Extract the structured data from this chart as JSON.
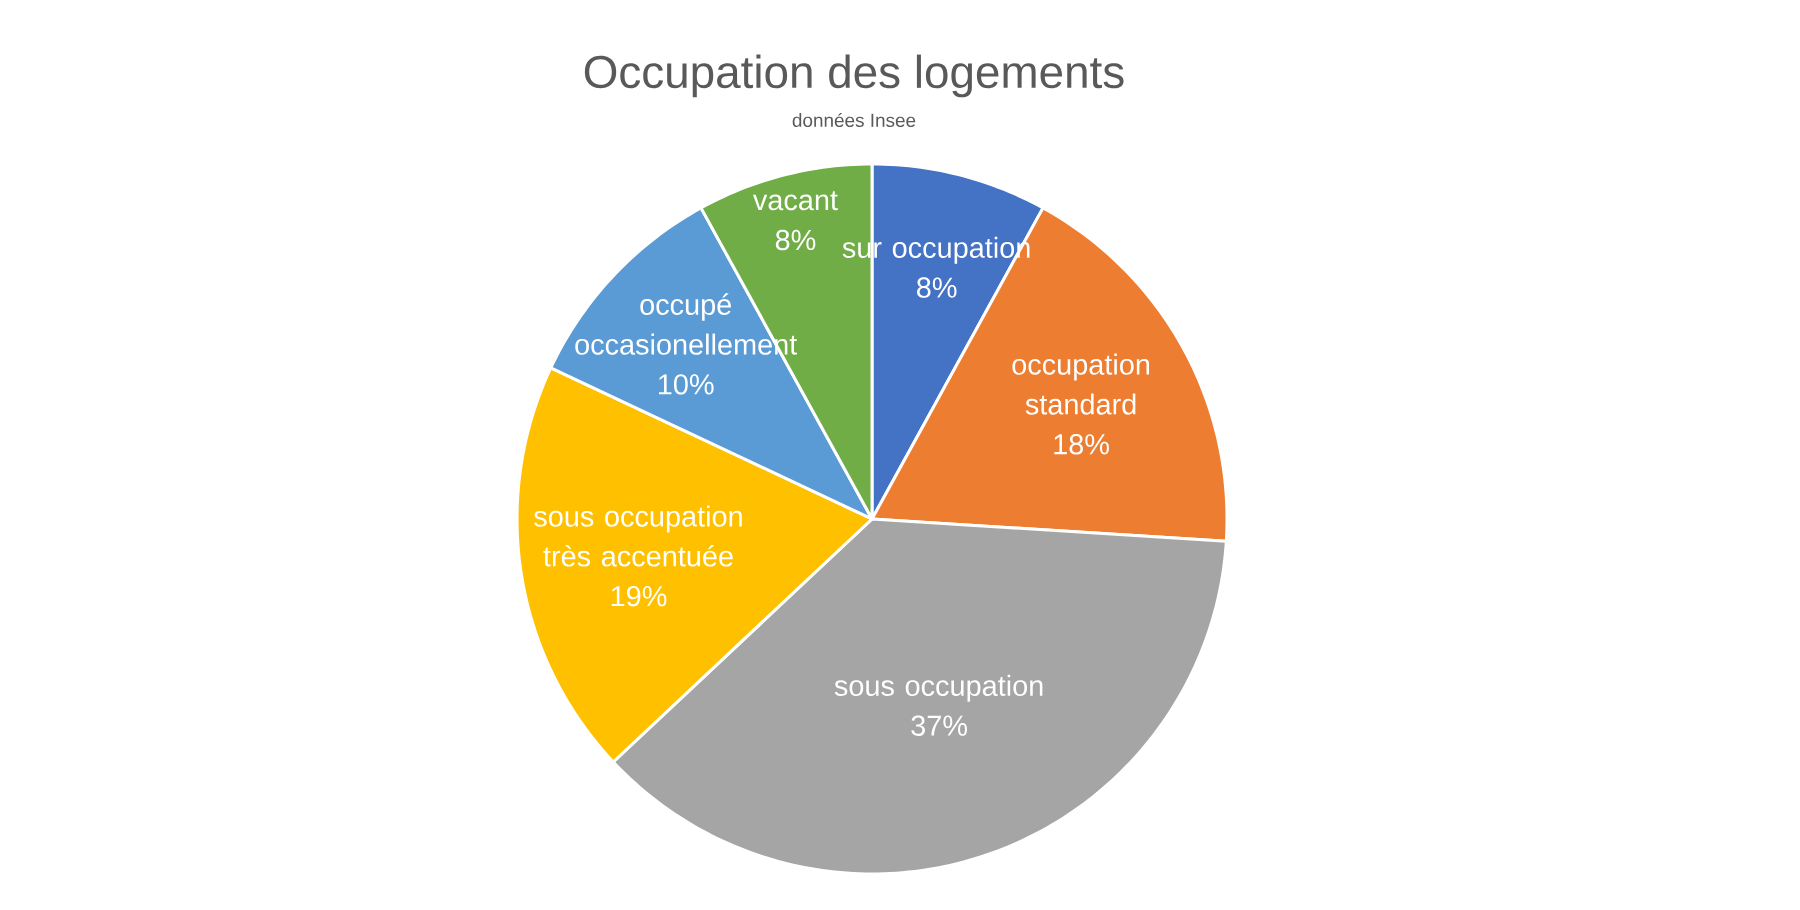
{
  "chart_data": {
    "type": "pie",
    "title": "Occupation des logements",
    "subtitle": "données Insee",
    "categories": [
      "sur occupation",
      "occupation standard",
      "sous occupation",
      "sous occupation très accentuée",
      "occupé occasionellement",
      "vacant"
    ],
    "values": [
      8,
      18,
      37,
      19,
      10,
      8
    ],
    "value_labels": [
      "8%",
      "18%",
      "37%",
      "19%",
      "10%",
      "8%"
    ],
    "colors": [
      "#4472c4",
      "#ed7d31",
      "#a5a5a5",
      "#ffc000",
      "#5b9bd5",
      "#70ad47"
    ]
  }
}
